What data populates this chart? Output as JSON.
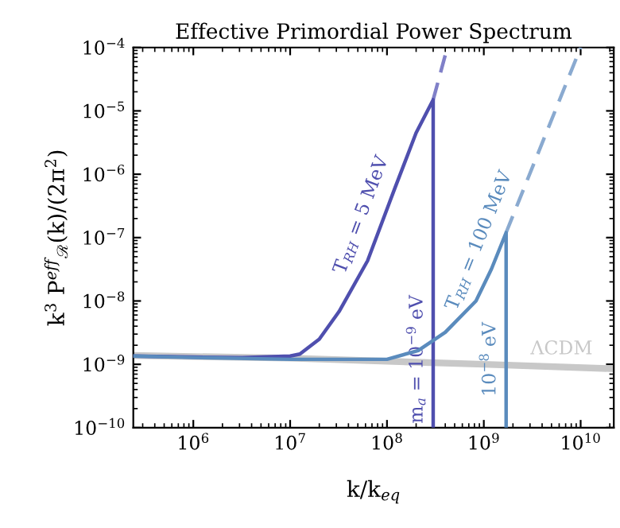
{
  "chart_data": {
    "type": "line",
    "title": "Effective Primordial Power Spectrum",
    "xlabel": "k/k$_{eq}$",
    "ylabel": "k$^{3}$ P$^{eff}$$_{ℛ}$(k)/(2π$^{2}$)",
    "log": "xy",
    "grid": false,
    "marker": "none",
    "xlim": [
      240000.0,
      22000000000.0
    ],
    "ylim": [
      1e-10,
      0.0001
    ],
    "xticks": [
      {
        "value": 1000000.0,
        "label": "10$^{6}$"
      },
      {
        "value": 10000000.0,
        "label": "10$^{7}$"
      },
      {
        "value": 100000000.0,
        "label": "10$^{8}$"
      },
      {
        "value": 1000000000.0,
        "label": "10$^{9}$"
      },
      {
        "value": 10000000000.0,
        "label": "10$^{10}$"
      }
    ],
    "yticks": [
      {
        "value": 1e-10,
        "label": "10$^{−10}$"
      },
      {
        "value": 1e-09,
        "label": "10$^{−9}$"
      },
      {
        "value": 1e-08,
        "label": "10$^{−8}$"
      },
      {
        "value": 1e-07,
        "label": "10$^{−7}$"
      },
      {
        "value": 1e-06,
        "label": "10$^{−6}$"
      },
      {
        "value": 1e-05,
        "label": "10$^{−5}$"
      },
      {
        "value": 0.0001,
        "label": "10$^{−4}$"
      }
    ],
    "series": [
      {
        "name": "ΛCDM",
        "color": "#c8c8c8",
        "line_style": "solid",
        "x": [
          240000.0,
          10000000.0,
          1000000000.0,
          22000000000.0
        ],
        "values": [
          1.38e-09,
          1.25e-09,
          1e-09,
          8.5e-10
        ]
      },
      {
        "color": "#8080c8",
        "line_style": "dashed",
        "x": [
          300000000.0,
          420000000.0
        ],
        "values": [
          1.5e-05,
          0.0001
        ]
      },
      {
        "color": "#8aaad0",
        "line_style": "dashed",
        "x": [
          1700000000.0,
          10000000000.0
        ],
        "values": [
          1.2e-07,
          0.0001
        ]
      },
      {
        "name": "T$_{RH}$ = 5 MeV",
        "color": "#4f4fae",
        "line_style": "solid",
        "x": [
          240000.0,
          1000000.0,
          3200000.0,
          10000000.0,
          12600000.0,
          20000000.0,
          32000000.0,
          63000000.0,
          120000000.0,
          200000000.0,
          300000000.0,
          300000000.0
        ],
        "values": [
          1.35e-09,
          1.3e-09,
          1.28e-09,
          1.35e-09,
          1.45e-09,
          2.5e-09,
          6.8e-09,
          4.3e-08,
          5.9e-07,
          4.5e-06,
          1.5e-05,
          1e-10
        ]
      },
      {
        "name": "T$_{RH}$ = 100 MeV",
        "color": "#5a8bbd",
        "line_style": "solid",
        "x": [
          240000.0,
          1000000.0,
          10000000.0,
          100000000.0,
          210000000.0,
          400000000.0,
          830000000.0,
          1200000000.0,
          1700000000.0,
          1700000000.0
        ],
        "values": [
          1.35e-09,
          1.28e-09,
          1.2e-09,
          1.2e-09,
          1.65e-09,
          3.2e-09,
          1e-08,
          3.2e-08,
          1.2e-07,
          1e-10
        ]
      }
    ],
    "annotations": [
      {
        "text": "m$_{a}$ = 10$^{−9}$ eV",
        "x": 300000000.0,
        "y": 1.2e-09
      },
      {
        "text": "10$^{−8}$ eV",
        "x": 1700000000.0,
        "y": 1.2e-09
      }
    ]
  }
}
